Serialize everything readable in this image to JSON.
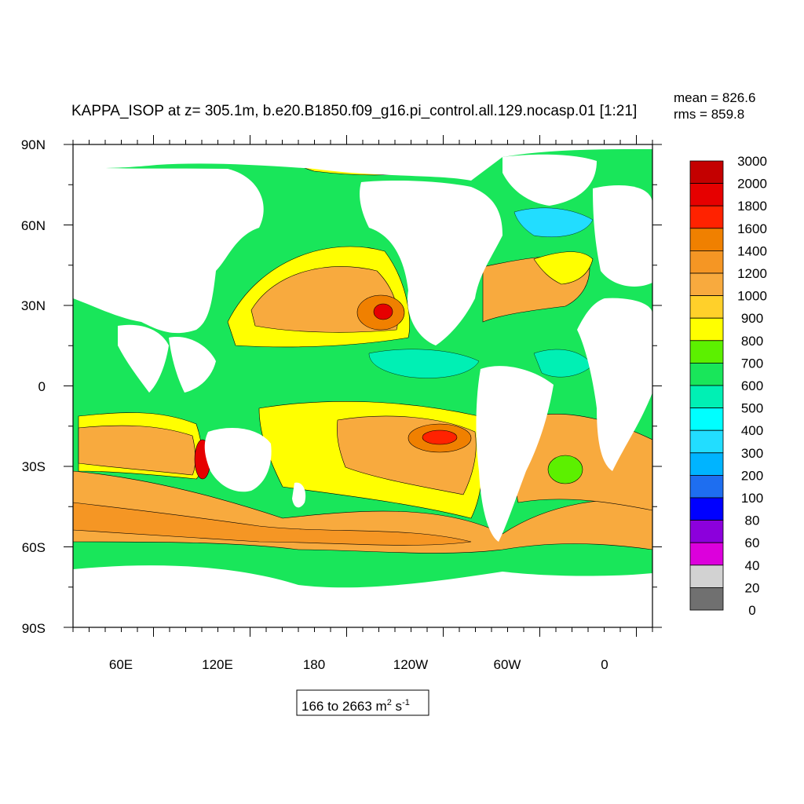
{
  "title": "KAPPA_ISOP at z= 305.1m, b.e20.B1850.f09_g16.pi_control.all.129.nocasp.01 [1:21]",
  "stats": {
    "mean": "mean = 826.6",
    "rms": "rms = 859.8"
  },
  "range_box": {
    "text": "166 to 2663 m",
    "sup1": "2",
    "unit2": " s",
    "sup2": "-1"
  },
  "lat_labels": [
    "90N",
    "60N",
    "30N",
    "0",
    "30S",
    "60S",
    "90S"
  ],
  "lon_labels": [
    "60E",
    "120E",
    "180",
    "120W",
    "60W",
    "0"
  ],
  "colorbar": {
    "labels": [
      "3000",
      "2000",
      "1800",
      "1600",
      "1400",
      "1200",
      "1000",
      "900",
      "800",
      "700",
      "600",
      "500",
      "400",
      "300",
      "200",
      "100",
      "80",
      "60",
      "40",
      "20",
      "0"
    ],
    "colors": [
      "#c40000",
      "#e60000",
      "#ff2200",
      "#f08000",
      "#f59624",
      "#f8aa3e",
      "#ffd02a",
      "#ffff00",
      "#5cf000",
      "#19e65a",
      "#00f0b4",
      "#00ffff",
      "#22ddff",
      "#00b4ff",
      "#1e6ef0",
      "#0000ff",
      "#8c00dc",
      "#dc00dc",
      "#d2d2d2",
      "#707070"
    ]
  },
  "map_colors": {
    "land": "#ffffff",
    "ocean_base": "#19e65a",
    "level_700": "#19e65a",
    "level_800": "#5cf000",
    "level_900": "#ffff00",
    "level_1000": "#ffd02a",
    "level_1200": "#f8aa3e",
    "level_1400": "#f59624",
    "level_1600": "#f08000",
    "level_1800": "#ff2200",
    "level_2000": "#e60000",
    "level_600": "#00f0b4",
    "level_500": "#00ffff",
    "level_400": "#22ddff"
  }
}
